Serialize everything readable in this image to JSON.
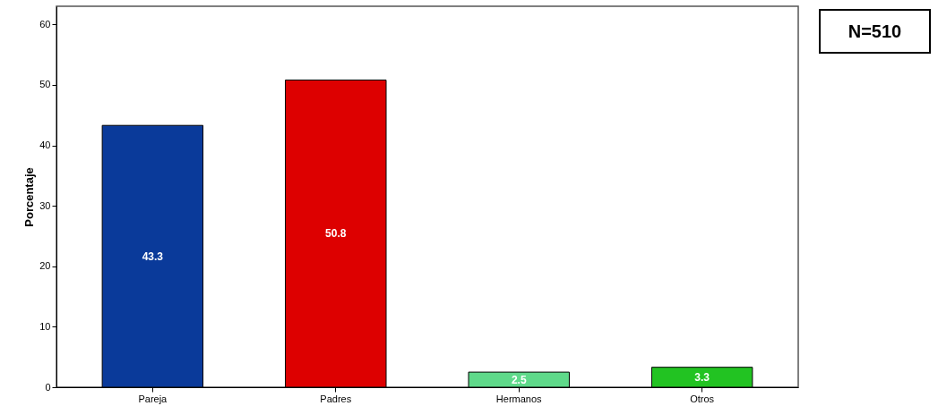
{
  "chart_data": {
    "type": "bar",
    "ylabel": "Porcentaje",
    "categories": [
      "Pareja",
      "Padres",
      "Hermanos",
      "Otros"
    ],
    "values": [
      43.3,
      50.8,
      2.5,
      3.3
    ],
    "colors": [
      "#0a3a9a",
      "#dd0000",
      "#5fd98a",
      "#22c322"
    ],
    "ylim": [
      0,
      63
    ],
    "yticks": [
      0,
      10,
      20,
      30,
      40,
      50,
      60
    ],
    "data_labels": true,
    "grid": false,
    "annotations": [
      "N=510"
    ]
  }
}
